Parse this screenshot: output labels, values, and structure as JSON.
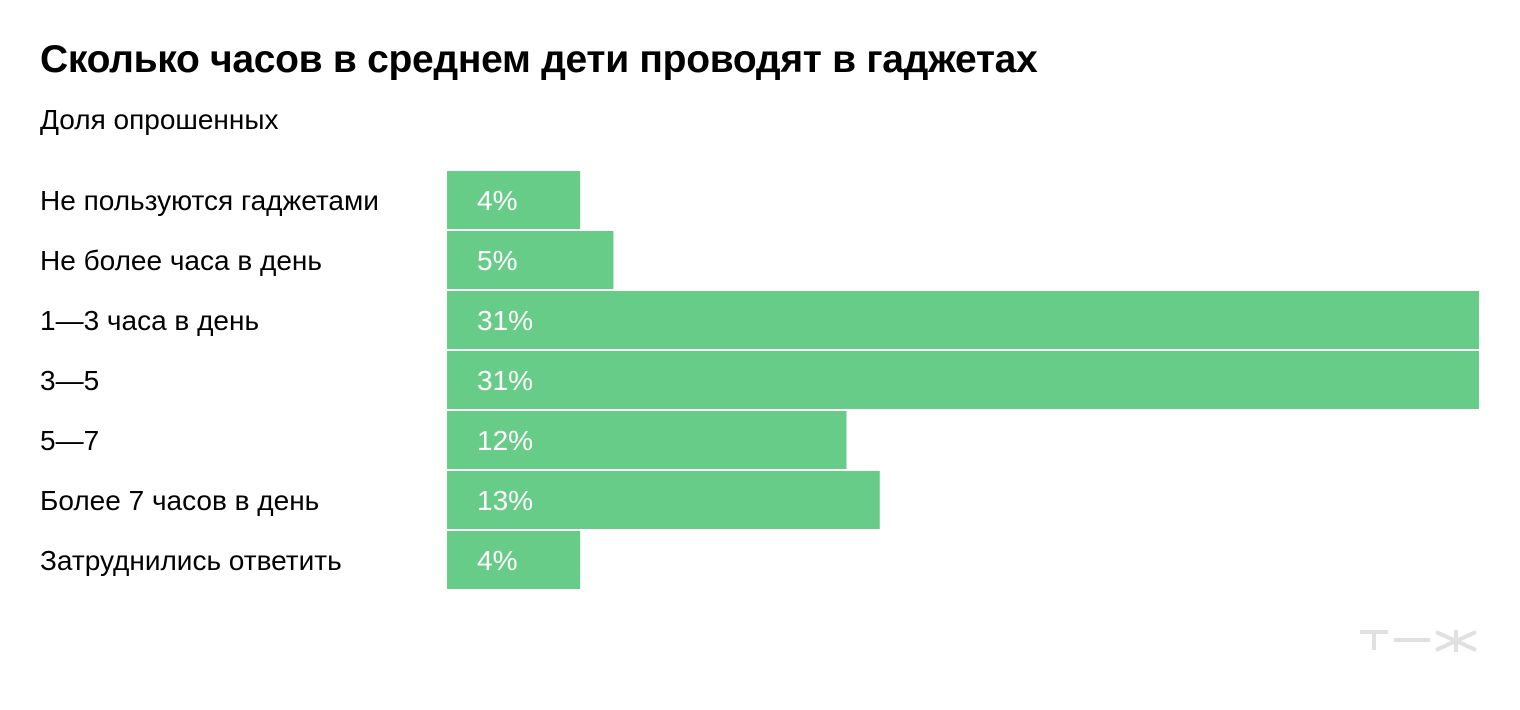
{
  "header": {
    "title": "Сколько часов в среднем дети проводят в гаджетах",
    "subtitle": "Доля опрошенных"
  },
  "chart_data": {
    "type": "bar",
    "orientation": "horizontal",
    "title": "Сколько часов в среднем дети проводят в гаджетах",
    "subtitle": "Доля опрошенных",
    "categories": [
      "Не пользуются гаджетами",
      "Не более часа в день",
      "1—3 часа в день",
      "3—5",
      "5—7",
      "Более 7 часов в день",
      "Затруднились ответить"
    ],
    "values": [
      4,
      5,
      31,
      31,
      12,
      13,
      4
    ],
    "value_labels": [
      "4%",
      "5%",
      "31%",
      "31%",
      "12%",
      "13%",
      "4%"
    ],
    "unit": "%",
    "xlim": [
      0,
      31
    ],
    "grid": false,
    "legend": "none",
    "bar_color": "#66cc88",
    "value_label_color": "#ffffff"
  },
  "logo": {
    "icon": "tzh-logo-icon",
    "color": "#e0e0e0"
  }
}
